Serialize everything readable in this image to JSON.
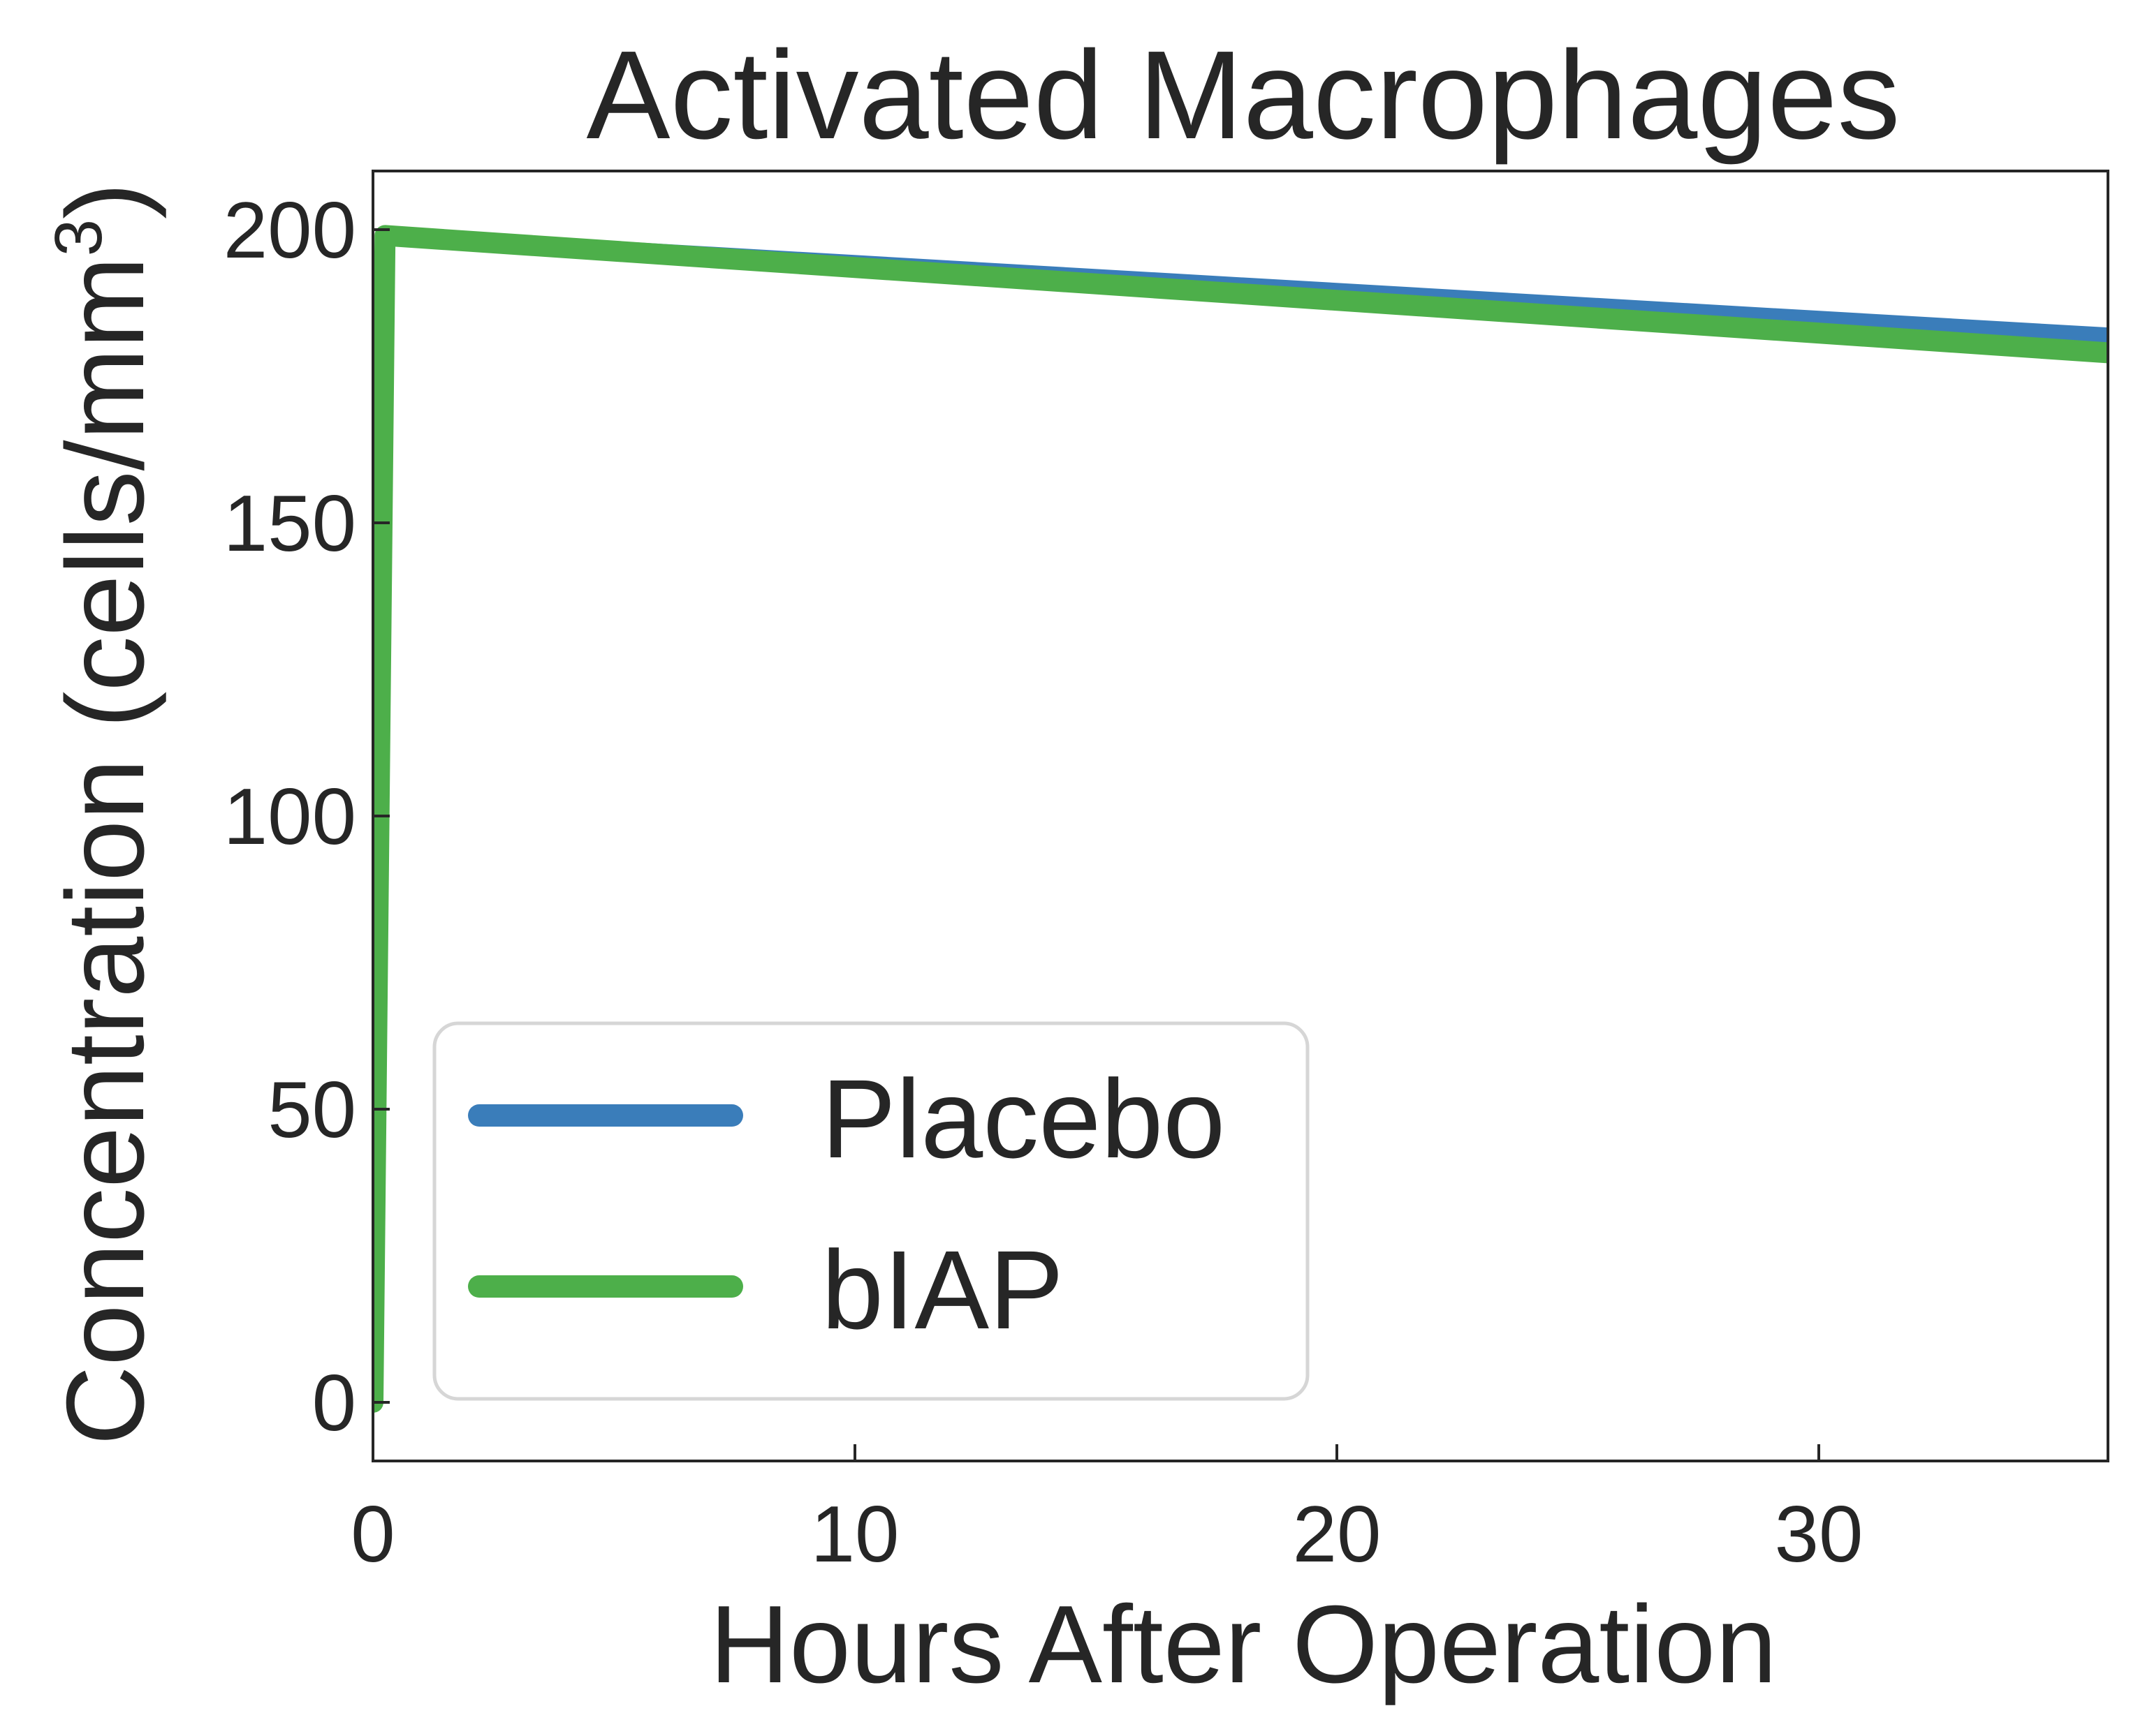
{
  "chart_data": {
    "type": "line",
    "title": "Activated Macrophages",
    "xlabel": "Hours After Operation",
    "ylabel": "Concentration (cells/mm",
    "ylabel_superscript": "3",
    "ylabel_close": ")",
    "xlim": [
      0,
      36
    ],
    "ylim": [
      -10,
      210
    ],
    "x_ticks": [
      0,
      10,
      20,
      30
    ],
    "y_ticks": [
      0,
      50,
      100,
      150,
      200
    ],
    "x_tick_labels": [
      "0",
      "10",
      "20",
      "30"
    ],
    "y_tick_labels": [
      "0",
      "50",
      "100",
      "150",
      "200"
    ],
    "grid": false,
    "legend_position": "lower-left",
    "series": [
      {
        "name": "Placebo",
        "color": "#3a7dba",
        "x": [
          0,
          0.25,
          36
        ],
        "y": [
          0,
          199,
          182
        ]
      },
      {
        "name": "bIAP",
        "color": "#4daf4a",
        "x": [
          0,
          0.25,
          36
        ],
        "y": [
          0,
          199,
          179
        ]
      }
    ]
  }
}
